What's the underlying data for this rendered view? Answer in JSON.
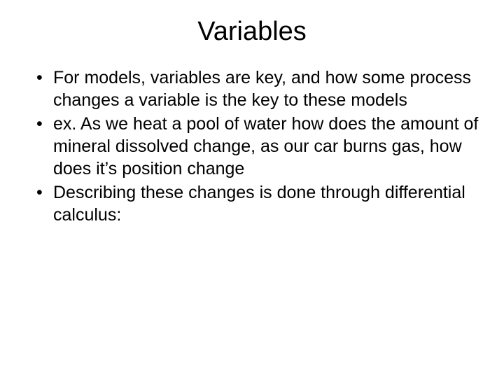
{
  "slide": {
    "title": "Variables",
    "bullets": [
      "For models, variables are key, and how some process changes a variable is the key to these models",
      "ex. As we heat a pool of water how does the amount of mineral dissolved change, as our car burns gas, how does it’s position change",
      "Describing these changes is done through differential calculus:"
    ],
    "background_color": "#ffffff",
    "text_color": "#000000",
    "title_fontsize": 38,
    "body_fontsize": 25
  }
}
